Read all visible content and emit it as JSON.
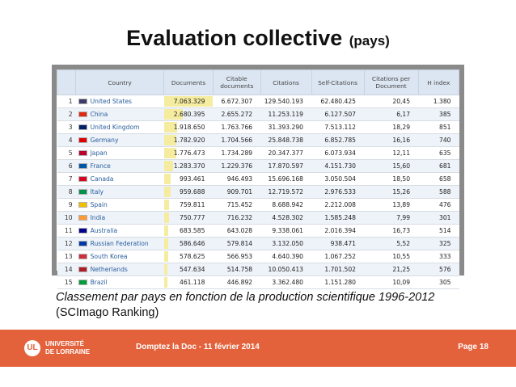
{
  "slide": {
    "title": "Evaluation collective",
    "title_suffix": "(pays)",
    "caption_line1": "Classement par pays en fonction de la production scientifique 1996-2012",
    "caption_line2": "(SCImago Ranking)"
  },
  "table": {
    "headers": [
      "",
      "Country",
      "Documents",
      "Citable documents",
      "Citations",
      "Self-Citations",
      "Citations per Document",
      "H index"
    ],
    "max_documents": 7063329,
    "rows": [
      {
        "rank": "1",
        "country": "United States",
        "flag_color": "#3c3b6e",
        "documents": "7.063.329",
        "documents_value": 7063329,
        "citable": "6.672.307",
        "citations": "129.540.193",
        "self_citations": "62.480.425",
        "cpd": "20,45",
        "h_index": "1.380"
      },
      {
        "rank": "2",
        "country": "China",
        "flag_color": "#de2910",
        "documents": "2.680.395",
        "documents_value": 2680395,
        "citable": "2.655.272",
        "citations": "11.253.119",
        "self_citations": "6.127.507",
        "cpd": "6,17",
        "h_index": "385"
      },
      {
        "rank": "3",
        "country": "United Kingdom",
        "flag_color": "#012169",
        "documents": "1.918.650",
        "documents_value": 1918650,
        "citable": "1.763.766",
        "citations": "31.393.290",
        "self_citations": "7.513.112",
        "cpd": "18,29",
        "h_index": "851"
      },
      {
        "rank": "4",
        "country": "Germany",
        "flag_color": "#dd0000",
        "documents": "1.782.920",
        "documents_value": 1782920,
        "citable": "1.704.566",
        "citations": "25.848.738",
        "self_citations": "6.852.785",
        "cpd": "16,16",
        "h_index": "740"
      },
      {
        "rank": "5",
        "country": "Japan",
        "flag_color": "#bc002d",
        "documents": "1.776.473",
        "documents_value": 1776473,
        "citable": "1.734.289",
        "citations": "20.347.377",
        "self_citations": "6.073.934",
        "cpd": "12,11",
        "h_index": "635"
      },
      {
        "rank": "6",
        "country": "France",
        "flag_color": "#0055a4",
        "documents": "1.283.370",
        "documents_value": 1283370,
        "citable": "1.229.376",
        "citations": "17.870.597",
        "self_citations": "4.151.730",
        "cpd": "15,60",
        "h_index": "681"
      },
      {
        "rank": "7",
        "country": "Canada",
        "flag_color": "#d80621",
        "documents": "993.461",
        "documents_value": 993461,
        "citable": "946.493",
        "citations": "15.696.168",
        "self_citations": "3.050.504",
        "cpd": "18,50",
        "h_index": "658"
      },
      {
        "rank": "8",
        "country": "Italy",
        "flag_color": "#009246",
        "documents": "959.688",
        "documents_value": 959688,
        "citable": "909.701",
        "citations": "12.719.572",
        "self_citations": "2.976.533",
        "cpd": "15,26",
        "h_index": "588"
      },
      {
        "rank": "9",
        "country": "Spain",
        "flag_color": "#f1bf00",
        "documents": "759.811",
        "documents_value": 759811,
        "citable": "715.452",
        "citations": "8.688.942",
        "self_citations": "2.212.008",
        "cpd": "13,89",
        "h_index": "476"
      },
      {
        "rank": "10",
        "country": "India",
        "flag_color": "#ff9933",
        "documents": "750.777",
        "documents_value": 750777,
        "citable": "716.232",
        "citations": "4.528.302",
        "self_citations": "1.585.248",
        "cpd": "7,99",
        "h_index": "301"
      },
      {
        "rank": "11",
        "country": "Australia",
        "flag_color": "#00008b",
        "documents": "683.585",
        "documents_value": 683585,
        "citable": "643.028",
        "citations": "9.338.061",
        "self_citations": "2.016.394",
        "cpd": "16,73",
        "h_index": "514"
      },
      {
        "rank": "12",
        "country": "Russian Federation",
        "flag_color": "#0039a6",
        "documents": "586.646",
        "documents_value": 586646,
        "citable": "579.814",
        "citations": "3.132.050",
        "self_citations": "938.471",
        "cpd": "5,52",
        "h_index": "325"
      },
      {
        "rank": "13",
        "country": "South Korea",
        "flag_color": "#cd2e3a",
        "documents": "578.625",
        "documents_value": 578625,
        "citable": "566.953",
        "citations": "4.640.390",
        "self_citations": "1.067.252",
        "cpd": "10,55",
        "h_index": "333"
      },
      {
        "rank": "14",
        "country": "Netherlands",
        "flag_color": "#ae1c28",
        "documents": "547.634",
        "documents_value": 547634,
        "citable": "514.758",
        "citations": "10.050.413",
        "self_citations": "1.701.502",
        "cpd": "21,25",
        "h_index": "576"
      },
      {
        "rank": "15",
        "country": "Brazil",
        "flag_color": "#009c3b",
        "documents": "461.118",
        "documents_value": 461118,
        "citable": "446.892",
        "citations": "3.362.480",
        "self_citations": "1.151.280",
        "cpd": "10,09",
        "h_index": "305"
      }
    ]
  },
  "footer": {
    "logo_mark": "UL",
    "logo_line1": "UNIVERSITÉ",
    "logo_line2": "DE LORRAINE",
    "event": "Domptez la Doc - 11 février 2014",
    "page": "Page 18",
    "background": "#e3613b"
  },
  "colors": {
    "header_bg": "#dce6f2",
    "row_alt_bg": "#eef3f9",
    "documents_bar": "#f5eca0",
    "country_link": "#2a5e9e"
  }
}
